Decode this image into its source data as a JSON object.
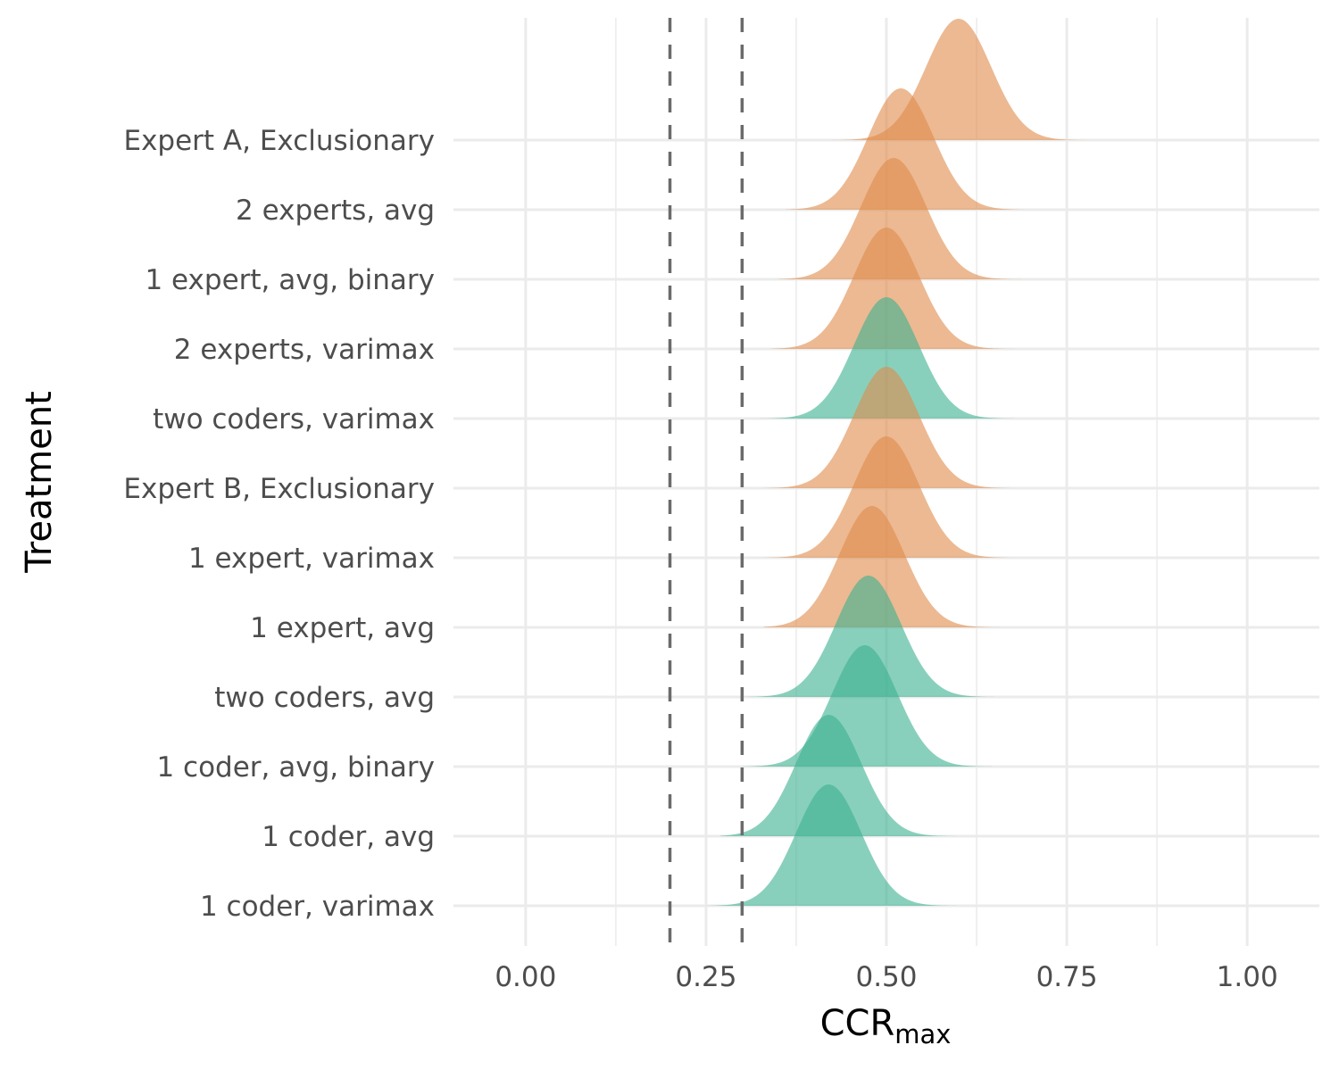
{
  "chart_data": {
    "type": "ridgeline",
    "xlabel": "CCR",
    "xlabel_subscript": "max",
    "ylabel": "Treatment",
    "xlim": [
      -0.1,
      1.1
    ],
    "x_ticks": [
      0.0,
      0.25,
      0.5,
      0.75,
      1.0
    ],
    "x_tick_labels": [
      "0.00",
      "0.25",
      "0.50",
      "0.75",
      "1.00"
    ],
    "reference_lines": [
      0.2,
      0.3
    ],
    "grid": true,
    "colors": {
      "expert": "#e08a4a",
      "coder": "#3bb08f"
    },
    "series": [
      {
        "name": "Expert A, Exclusionary",
        "group": "expert",
        "mean": 0.6,
        "sd": 0.045,
        "range": [
          0.42,
          0.79
        ]
      },
      {
        "name": "2 experts, avg",
        "group": "expert",
        "mean": 0.52,
        "sd": 0.045,
        "range": [
          0.36,
          0.69
        ]
      },
      {
        "name": "1 expert, avg, binary",
        "group": "expert",
        "mean": 0.51,
        "sd": 0.045,
        "range": [
          0.35,
          0.7
        ]
      },
      {
        "name": "2 experts, varimax",
        "group": "expert",
        "mean": 0.5,
        "sd": 0.045,
        "range": [
          0.34,
          0.69
        ]
      },
      {
        "name": "two coders, varimax",
        "group": "coder",
        "mean": 0.5,
        "sd": 0.045,
        "range": [
          0.31,
          0.69
        ]
      },
      {
        "name": "Expert B, Exclusionary",
        "group": "expert",
        "mean": 0.5,
        "sd": 0.045,
        "range": [
          0.33,
          0.67
        ]
      },
      {
        "name": "1 expert, varimax",
        "group": "expert",
        "mean": 0.5,
        "sd": 0.045,
        "range": [
          0.33,
          0.67
        ]
      },
      {
        "name": "1 expert, avg",
        "group": "expert",
        "mean": 0.48,
        "sd": 0.045,
        "range": [
          0.33,
          0.7
        ]
      },
      {
        "name": "two coders, avg",
        "group": "coder",
        "mean": 0.475,
        "sd": 0.045,
        "range": [
          0.3,
          0.66
        ]
      },
      {
        "name": "1 coder, avg, binary",
        "group": "coder",
        "mean": 0.47,
        "sd": 0.045,
        "range": [
          0.3,
          0.66
        ]
      },
      {
        "name": "1 coder, avg",
        "group": "coder",
        "mean": 0.42,
        "sd": 0.045,
        "range": [
          0.27,
          0.63
        ]
      },
      {
        "name": "1 coder, varimax",
        "group": "coder",
        "mean": 0.42,
        "sd": 0.045,
        "range": [
          0.25,
          0.62
        ]
      }
    ]
  }
}
